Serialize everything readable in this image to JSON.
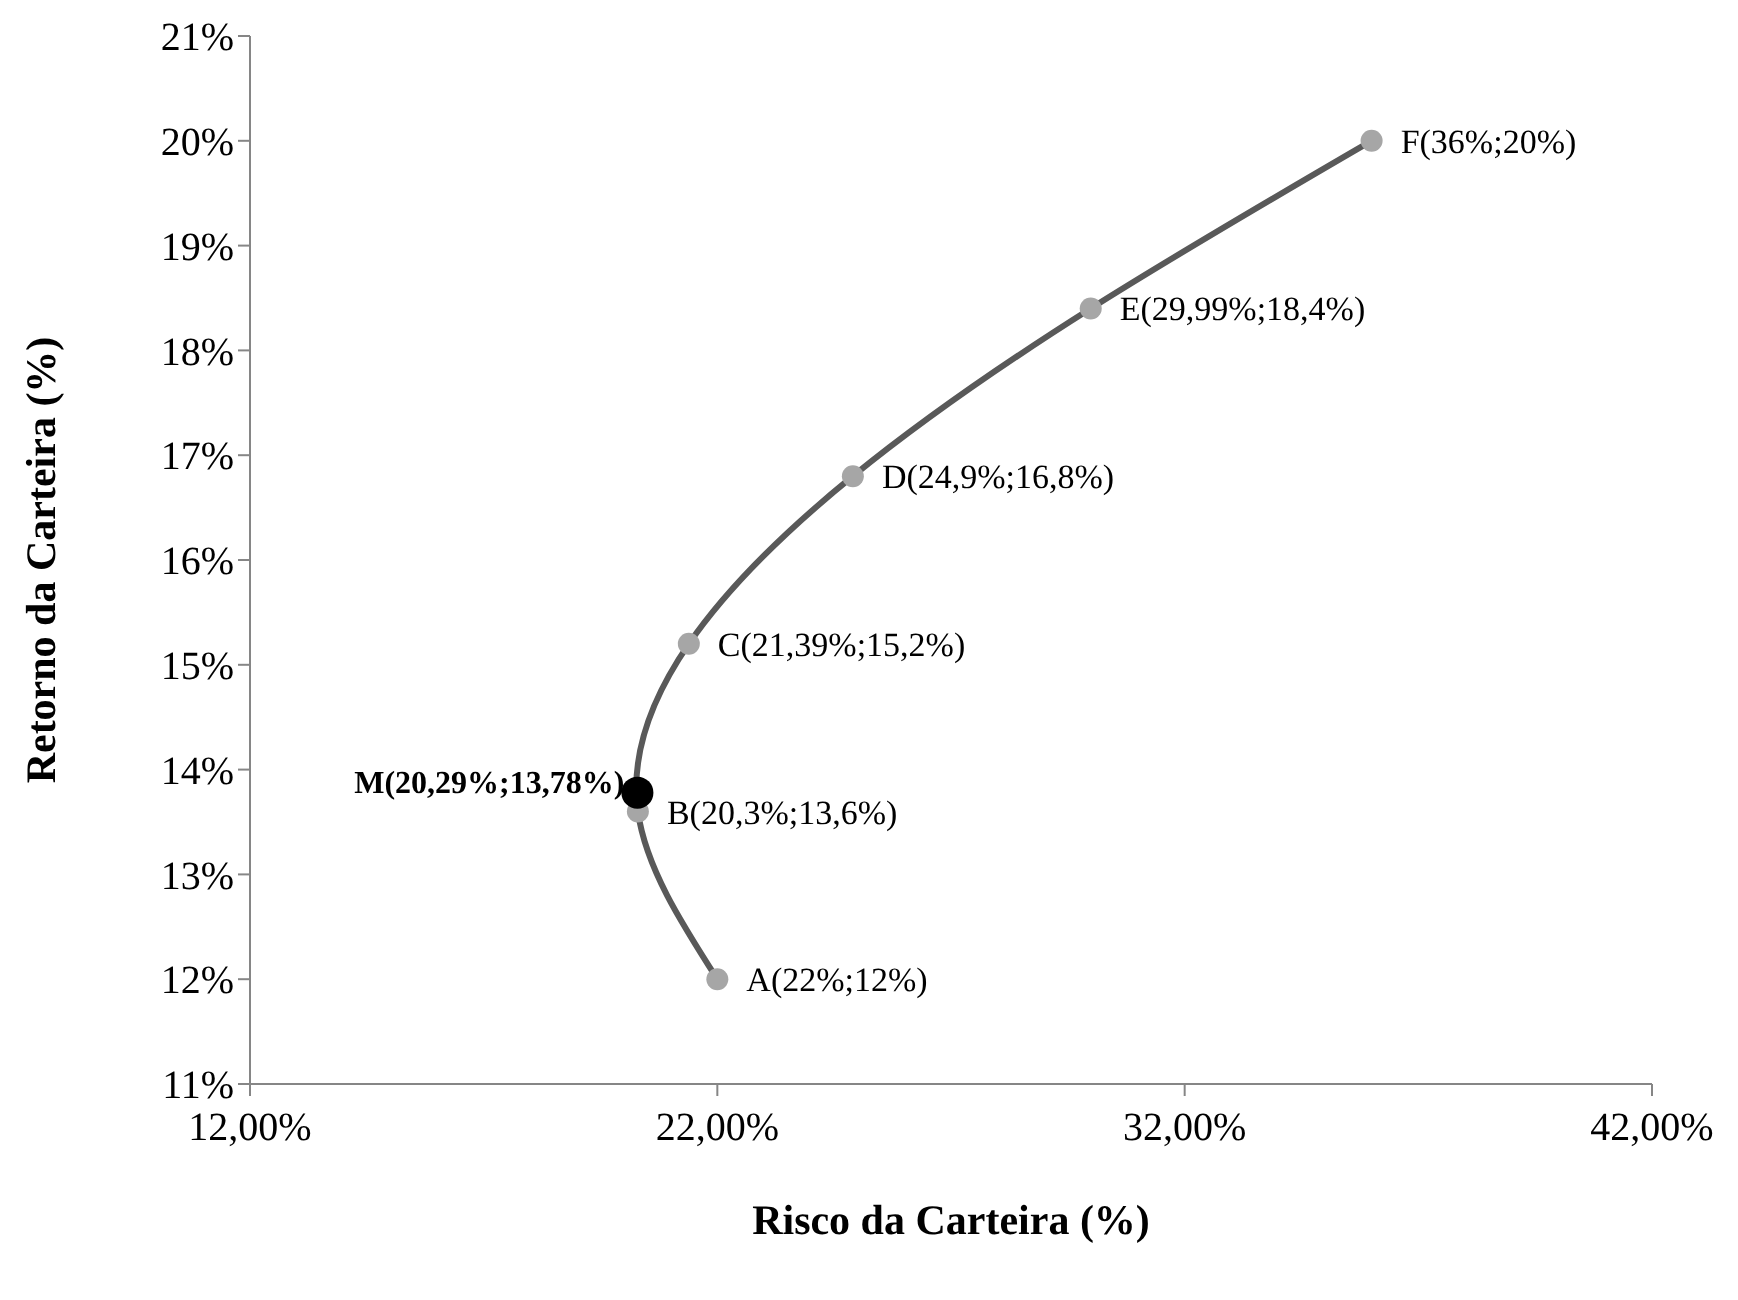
{
  "chart_data": {
    "type": "scatter",
    "xlabel": "Risco da Carteira (%)",
    "ylabel": "Retorno da Carteira (%)",
    "xlim": [
      12,
      42
    ],
    "xticks": [
      {
        "value": 12,
        "label": "12,00%"
      },
      {
        "value": 22,
        "label": "22,00%"
      },
      {
        "value": 32,
        "label": "32,00%"
      },
      {
        "value": 42,
        "label": "42,00%"
      }
    ],
    "ylim": [
      11,
      21
    ],
    "yticks": [
      {
        "value": 11,
        "label": "11%"
      },
      {
        "value": 12,
        "label": "12%"
      },
      {
        "value": 13,
        "label": "13%"
      },
      {
        "value": 14,
        "label": "14%"
      },
      {
        "value": 15,
        "label": "15%"
      },
      {
        "value": 16,
        "label": "16%"
      },
      {
        "value": 17,
        "label": "17%"
      },
      {
        "value": 18,
        "label": "18%"
      },
      {
        "value": 19,
        "label": "19%"
      },
      {
        "value": 20,
        "label": "20%"
      },
      {
        "value": 21,
        "label": "21%"
      }
    ],
    "grid": false,
    "legend": false,
    "marker": "circle",
    "line_style": "solid",
    "series": [
      {
        "type": "line",
        "marker": "none",
        "color": "#595959",
        "x": [
          22,
          20.3,
          21.39,
          24.9,
          29.99,
          36
        ],
        "values": [
          12,
          13.6,
          15.2,
          16.8,
          18.4,
          20
        ]
      },
      {
        "color": "#a6a6a6",
        "x": [
          22,
          20.3,
          21.39,
          24.9,
          29.99,
          36
        ],
        "values": [
          12,
          13.6,
          15.2,
          16.8,
          18.4,
          20
        ],
        "value_labels": [
          "A(22%;12%)",
          "B(20,3%;13,6%)",
          "C(21,39%;15,2%)",
          "D(24,9%;16,8%)",
          "E(29,99%;18,4%)",
          "F(36%;20%)"
        ]
      },
      {
        "color": "#000000",
        "x": [
          20.29
        ],
        "values": [
          13.78
        ],
        "value_labels": [
          "M(20,29%;13,78%)"
        ]
      }
    ]
  }
}
